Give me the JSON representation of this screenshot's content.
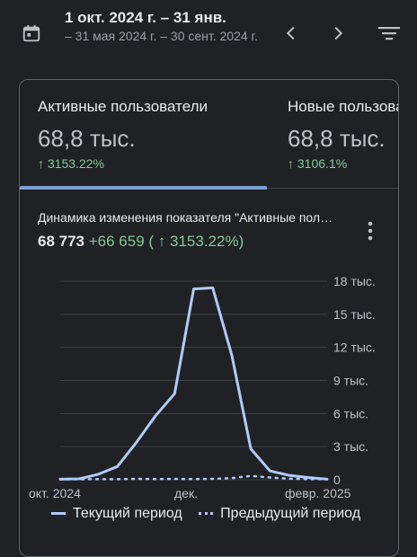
{
  "header": {
    "date_range": "1 окт. 2024 г. – 31 янв.",
    "compare_range": "– 31 мая 2024 г. – 30 сент. 2024 г.",
    "icons": [
      "calendar-icon",
      "chevron-left-icon",
      "chevron-right-icon",
      "filter-icon"
    ]
  },
  "metrics": [
    {
      "label": "Активные пользователи",
      "value": "68,8 тыс.",
      "change": "3153.22%"
    },
    {
      "label": "Новые пользователи",
      "value": "68,8 тыс.",
      "change": "3106.1%"
    }
  ],
  "chart_card": {
    "title": "Динамика изменения показателя \"Активные пользователи\"",
    "total": "68 773",
    "delta": "+66 659",
    "delta_pct": "( ↑ 3153.22%)"
  },
  "chart_data": {
    "type": "line",
    "y_ticks": [
      "18 тыс.",
      "15 тыс.",
      "12 тыс.",
      "9 тыс.",
      "6 тыс.",
      "3 тыс.",
      "0"
    ],
    "x_ticks": [
      "окт. 2024",
      "дек.",
      "февр. 2025"
    ],
    "ylim": [
      0,
      18000
    ],
    "series": [
      {
        "name": "Текущий период",
        "style": "solid",
        "color": "#aecbfa",
        "values": [
          50,
          80,
          500,
          1200,
          3400,
          5800,
          7800,
          17300,
          17400,
          11300,
          2800,
          800,
          400,
          200,
          50
        ]
      },
      {
        "name": "Предыдущий период",
        "style": "dotted",
        "color": "#aecbfa",
        "values": [
          30,
          40,
          60,
          50,
          80,
          60,
          70,
          60,
          80,
          150,
          350,
          200,
          100,
          60,
          40
        ]
      }
    ],
    "grid": true,
    "legend_position": "bottom"
  }
}
